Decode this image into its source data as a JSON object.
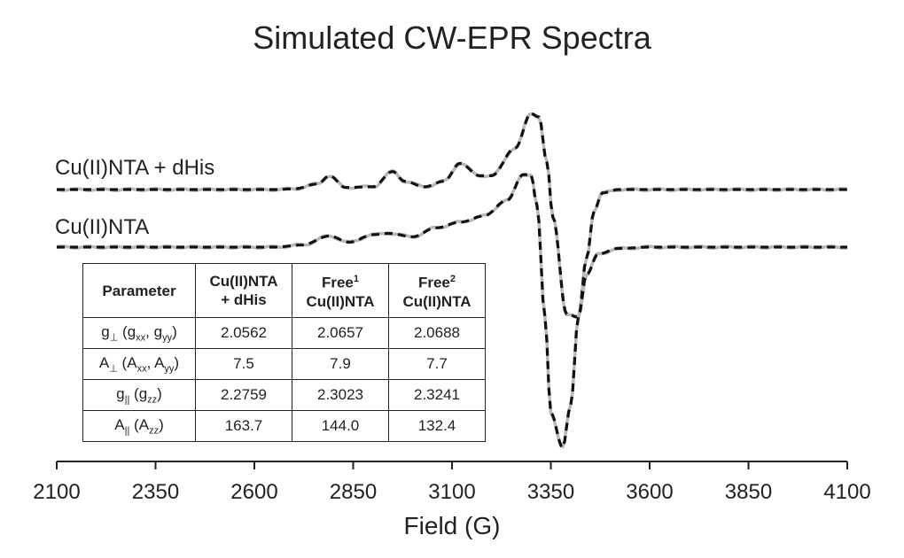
{
  "chart_data": {
    "type": "line",
    "title": "Simulated CW-EPR Spectra",
    "xlabel": "Field (G)",
    "ylabel": "",
    "xlim": [
      2100,
      4100
    ],
    "xticks": [
      "2100",
      "2350",
      "2600",
      "2850",
      "3100",
      "3350",
      "3600",
      "3850",
      "4100"
    ],
    "grid": false,
    "line_styles": {
      "experimental": "solid-gray",
      "simulated": "dashed-black"
    },
    "colors": {
      "experimental": "#b8b8b8",
      "simulated": "#111111"
    },
    "series_labels": [
      "Cu(II)NTA + dHis",
      "Cu(II)NTA"
    ],
    "series": [
      {
        "label_index": 0,
        "baseline": 0,
        "x": [
          2100,
          2650,
          2700,
          2760,
          2790,
          2830,
          2900,
          2950,
          2980,
          3030,
          3080,
          3120,
          3170,
          3200,
          3260,
          3300,
          3320,
          3340,
          3355,
          3390,
          3420,
          3440,
          3460,
          3480,
          3520,
          3700,
          4100
        ],
        "y": [
          0,
          0,
          0.01,
          0.08,
          0.2,
          0.03,
          0.04,
          0.26,
          0.12,
          0.04,
          0.12,
          0.38,
          0.2,
          0.2,
          0.6,
          1.1,
          1.05,
          0.4,
          -0.4,
          -1.8,
          -1.85,
          -1.0,
          -0.3,
          -0.05,
          0,
          0,
          0
        ]
      },
      {
        "label_index": 1,
        "baseline": 0,
        "x": [
          2100,
          2650,
          2720,
          2790,
          2840,
          2900,
          2940,
          3000,
          3060,
          3120,
          3180,
          3240,
          3280,
          3300,
          3315,
          3335,
          3350,
          3380,
          3400,
          3420,
          3440,
          3470,
          3520,
          3600,
          4100
        ],
        "y": [
          0,
          0,
          0.03,
          0.16,
          0.07,
          0.18,
          0.2,
          0.15,
          0.28,
          0.36,
          0.45,
          0.68,
          1.05,
          1.05,
          0.6,
          -1.0,
          -2.4,
          -2.9,
          -2.3,
          -1.0,
          -0.4,
          -0.1,
          -0.02,
          0,
          0
        ]
      }
    ]
  },
  "table": {
    "headers": [
      {
        "main": "Parameter",
        "sup": "",
        "line2": ""
      },
      {
        "main": "Cu(II)NTA",
        "sup": "",
        "line2": "+ dHis"
      },
      {
        "main": "Free",
        "sup": "1",
        "line2": "Cu(II)NTA"
      },
      {
        "main": "Free",
        "sup": "2",
        "line2": "Cu(II)NTA"
      }
    ],
    "rows": [
      {
        "symbol": "g",
        "symbol_sub": "⊥",
        "open": " (g",
        "sub_a": "xx",
        "mid": ", g",
        "sub_b": "yy",
        "close": ")",
        "values": [
          "2.0562",
          "2.0657",
          "2.0688"
        ]
      },
      {
        "symbol": "A",
        "symbol_sub": "⊥",
        "open": " (A",
        "sub_a": "xx",
        "mid": ", A",
        "sub_b": "yy",
        "close": ")",
        "values": [
          "7.5",
          "7.9",
          "7.7"
        ]
      },
      {
        "symbol": "g",
        "symbol_sub": "||",
        "open": " (g",
        "sub_a": "zz",
        "mid": "",
        "sub_b": "",
        "close": ")",
        "values": [
          "2.2759",
          "2.3023",
          "2.3241"
        ]
      },
      {
        "symbol": "A",
        "symbol_sub": "||",
        "open": " (A",
        "sub_a": "zz",
        "mid": "",
        "sub_b": "",
        "close": ")",
        "values": [
          "163.7",
          "144.0",
          "132.4"
        ]
      }
    ]
  }
}
